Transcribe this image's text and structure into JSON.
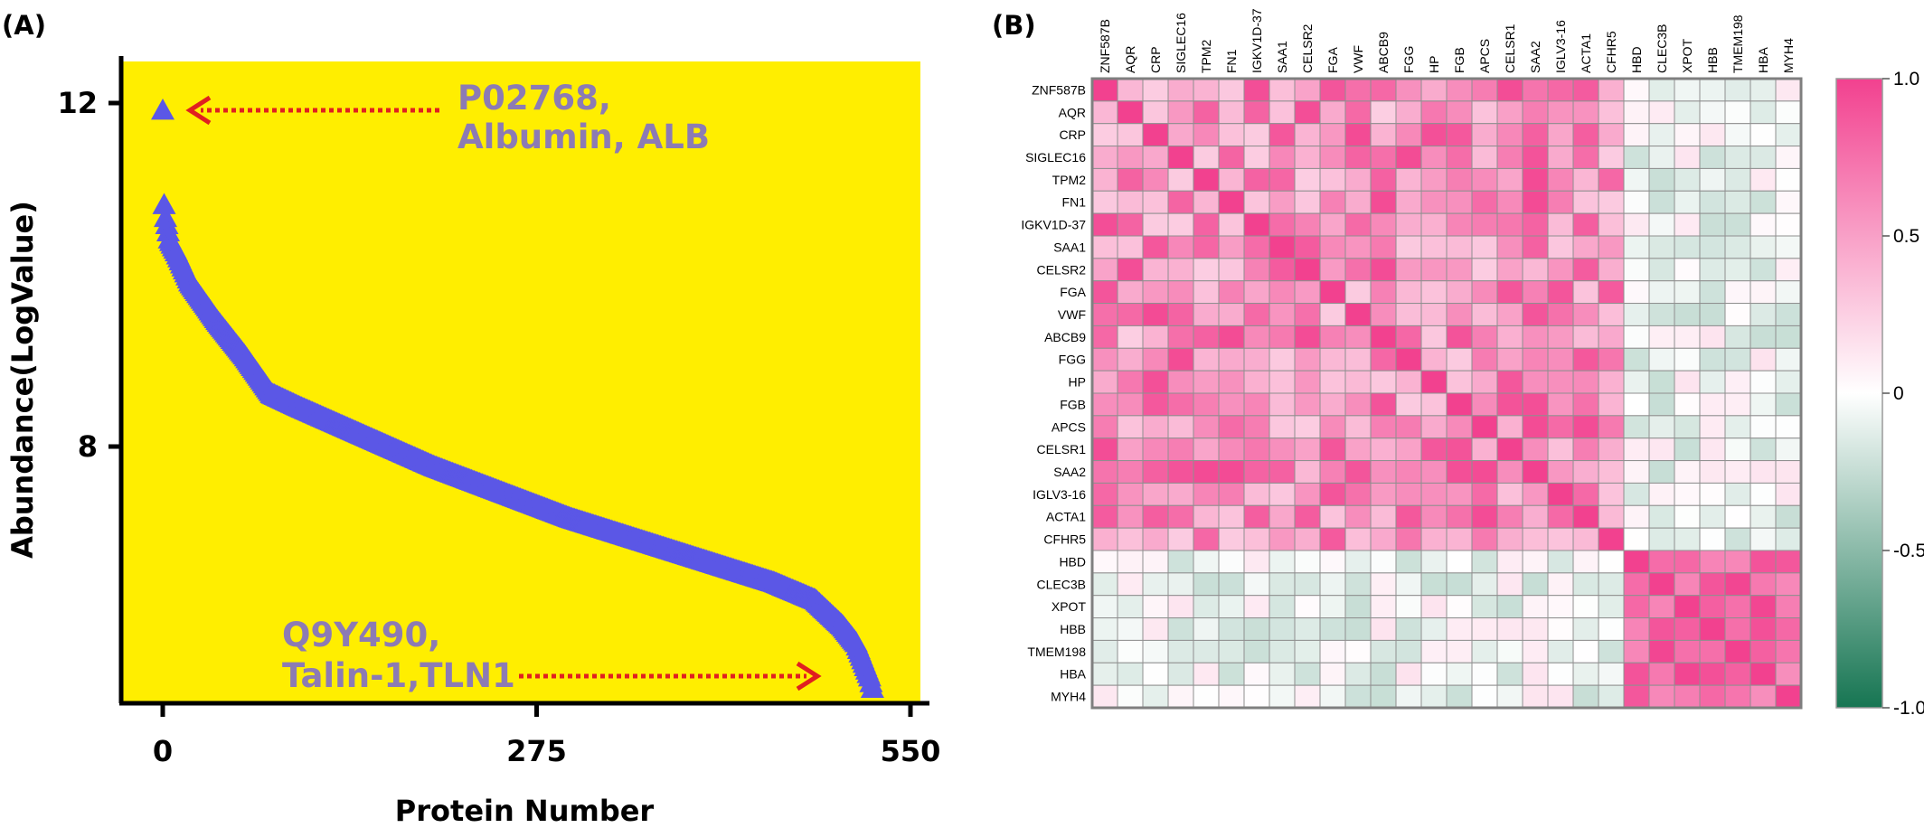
{
  "panel_a_label": "(A)",
  "panel_b_label": "(B)",
  "chart_data": [
    {
      "type": "scatter",
      "xlabel": "Protein Number",
      "ylabel": "Abundance(LogValue)",
      "xlim": [
        -30,
        570
      ],
      "ylim": [
        5,
        12.5
      ],
      "xticks": [
        0,
        275,
        550
      ],
      "yticks": [
        8,
        12
      ],
      "background_color": "#ffee00",
      "marker": "triangle",
      "marker_color": "#5b57e6",
      "n_points": 523,
      "curve_anchors": {
        "x": [
          0,
          1,
          2,
          5,
          10,
          20,
          40,
          60,
          80,
          100,
          150,
          200,
          250,
          300,
          350,
          400,
          450,
          480,
          500,
          510,
          515,
          520,
          523
        ],
        "y": [
          11.9,
          10.8,
          10.65,
          10.4,
          10.25,
          9.9,
          9.45,
          9.05,
          8.6,
          8.45,
          8.1,
          7.75,
          7.45,
          7.15,
          6.9,
          6.65,
          6.4,
          6.2,
          5.9,
          5.7,
          5.5,
          5.3,
          5.1
        ]
      },
      "annotations": [
        {
          "lines": [
            "P02768,",
            "Albumin, ALB"
          ],
          "points_to": {
            "x": 0,
            "y": 11.9
          }
        },
        {
          "lines": [
            "Q9Y490,",
            "Talin-1,TLN1"
          ],
          "points_to": {
            "x": 523,
            "y": 5.1
          }
        }
      ],
      "arrow_color": "#e02020"
    },
    {
      "type": "heatmap",
      "rows": [
        "ZNF587B",
        "AQR",
        "CRP",
        "SIGLEC16",
        "TPM2",
        "FN1",
        "IGKV1D-37",
        "SAA1",
        "CELSR2",
        "FGA",
        "VWF",
        "ABCB9",
        "FGG",
        "HP",
        "FGB",
        "APCS",
        "CELSR1",
        "SAA2",
        "IGLV3-16",
        "ACTA1",
        "CFHR5",
        "HBD",
        "CLEC3B",
        "XPOT",
        "HBB",
        "TMEM198",
        "HBA",
        "MYH4"
      ],
      "columns": [
        "ZNF587B",
        "AQR",
        "CRP",
        "SIGLEC16",
        "TPM2",
        "FN1",
        "IGKV1D-37",
        "SAA1",
        "CELSR2",
        "FGA",
        "VWF",
        "ABCB9",
        "FGG",
        "HP",
        "FGB",
        "APCS",
        "CELSR1",
        "SAA2",
        "IGLV3-16",
        "ACTA1",
        "CFHR5",
        "HBD",
        "CLEC3B",
        "XPOT",
        "HBB",
        "TMEM198",
        "HBA",
        "MYH4"
      ],
      "value_range": [
        -1.0,
        1.0
      ],
      "colorbar_ticks": [
        "1.0",
        "0.5",
        "0",
        "-0.5",
        "-1.0"
      ],
      "colormap": {
        "low": "#167552",
        "mid": "#ffffff",
        "high": "#f2418f"
      },
      "group_size": 21,
      "values_approx": {
        "diagonal": 1.0,
        "within_group_1": 0.6,
        "within_group_2": 0.75,
        "between_groups": -0.05
      }
    }
  ]
}
